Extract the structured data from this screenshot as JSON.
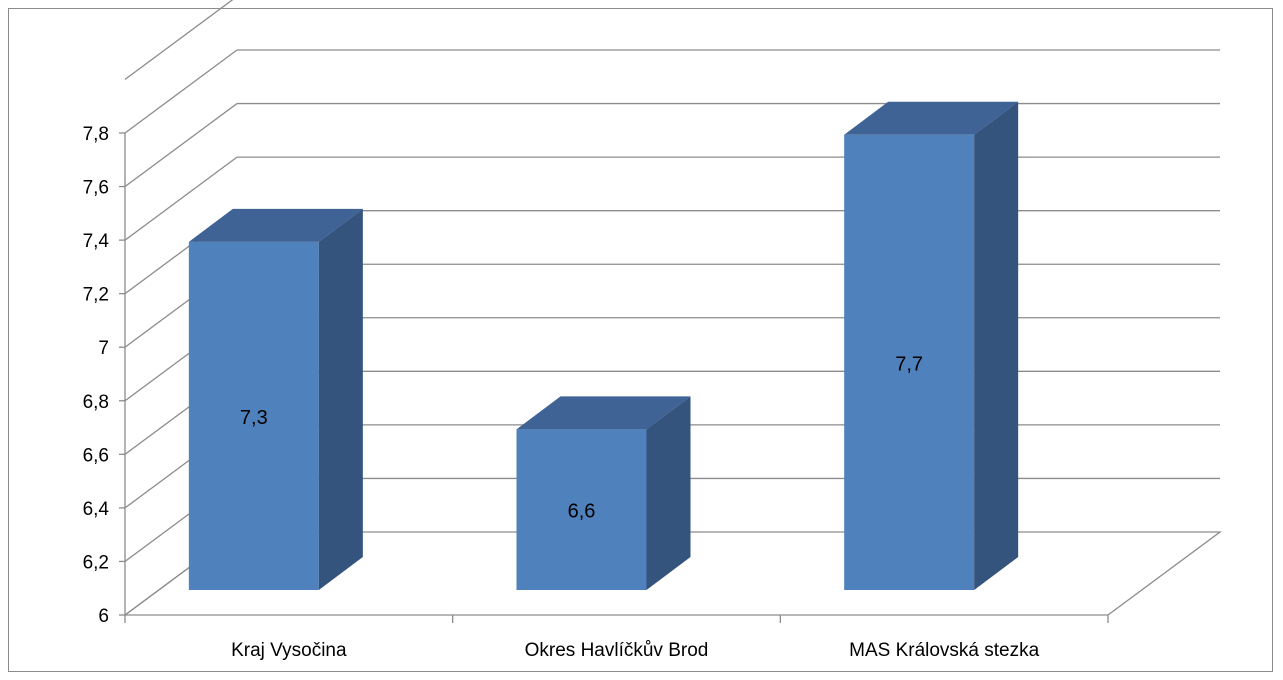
{
  "chart_data": {
    "type": "bar",
    "style": "3d-column",
    "categories": [
      "Kraj Vysočina",
      "Okres Havlíčkův Brod",
      "MAS Královská stezka"
    ],
    "series": [
      {
        "values": [
          7.3,
          6.6,
          7.7
        ]
      }
    ],
    "data_labels": [
      "7,3",
      "6,6",
      "7,7"
    ],
    "yticks": [
      "6",
      "6,2",
      "6,4",
      "6,6",
      "6,8",
      "7",
      "7,2",
      "7,4",
      "7,6",
      "7,8"
    ],
    "ylim": [
      6,
      7.8
    ],
    "ystep": 0.2,
    "grid": true,
    "legend": "none",
    "title": "",
    "xlabel": "",
    "ylabel": "",
    "colors": {
      "front": "#4f81bd",
      "top": "#3e6394",
      "side": "#34537d",
      "grid": "#8c8c8c",
      "axis": "#8c8c8c"
    }
  }
}
